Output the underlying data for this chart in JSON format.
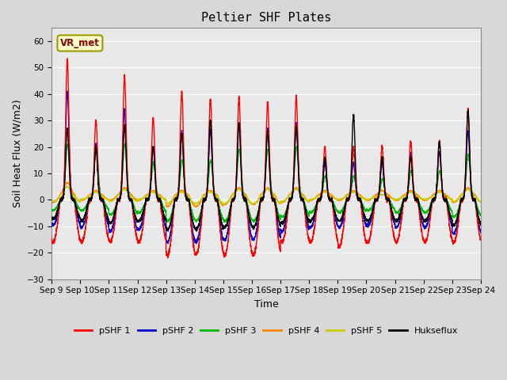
{
  "title": "Peltier SHF Plates",
  "xlabel": "Time",
  "ylabel": "Soil Heat Flux (W/m2)",
  "ylim": [
    -30,
    65
  ],
  "yticks": [
    -30,
    -20,
    -10,
    0,
    10,
    20,
    30,
    40,
    50,
    60
  ],
  "annotation_text": "VR_met",
  "background_color": "#d8d8d8",
  "plot_bg_color": "#e8e8e8",
  "legend_entries": [
    "pSHF 1",
    "pSHF 2",
    "pSHF 3",
    "pSHF 4",
    "pSHF 5",
    "Hukseflux"
  ],
  "line_colors": [
    "#ff0000",
    "#0000cc",
    "#00bb00",
    "#ff8800",
    "#cccc00",
    "#000000"
  ],
  "xtick_labels": [
    "Sep 9",
    "Sep 10",
    "Sep 11",
    "Sep 12",
    "Sep 13",
    "Sep 14",
    "Sep 15",
    "Sep 16",
    "Sep 17",
    "Sep 18",
    "Sep 19",
    "Sep 20",
    "Sep 21",
    "Sep 22",
    "Sep 23",
    "Sep 24"
  ],
  "num_days": 15,
  "pts_per_day": 288,
  "day_peaks_shf1": [
    53,
    30,
    47,
    31,
    41,
    38,
    39,
    37,
    39,
    20,
    20,
    20,
    22,
    22,
    34
  ],
  "day_peaks_shf2": [
    41,
    21,
    34,
    20,
    26,
    26,
    29,
    27,
    29,
    14,
    14,
    14,
    18,
    18,
    26
  ],
  "day_peaks_shf3": [
    21,
    19,
    21,
    14,
    15,
    15,
    19,
    19,
    20,
    9,
    9,
    8,
    11,
    11,
    17
  ],
  "day_peaks_shf4": [
    5,
    2,
    3,
    2,
    2,
    2,
    3,
    3,
    3,
    2,
    2,
    2,
    2,
    2,
    3
  ],
  "day_peaks_shf5": [
    4,
    2,
    3,
    2,
    2,
    2,
    3,
    3,
    3,
    2,
    2,
    1,
    2,
    2,
    3
  ],
  "day_peaks_huk": [
    27,
    20,
    28,
    20,
    25,
    30,
    29,
    26,
    28,
    16,
    32,
    16,
    16,
    22,
    34
  ],
  "day_troughs_shf1": [
    -20,
    -20,
    -20,
    -20,
    -26,
    -26,
    -26,
    -26,
    -20,
    -20,
    -22,
    -20,
    -20,
    -20,
    -20
  ],
  "day_troughs_shf2": [
    -12,
    -13,
    -15,
    -14,
    -20,
    -20,
    -19,
    -19,
    -15,
    -13,
    -13,
    -12,
    -13,
    -13,
    -16
  ],
  "day_troughs_shf3": [
    -5,
    -5,
    -7,
    -6,
    -10,
    -10,
    -10,
    -10,
    -8,
    -6,
    -6,
    -5,
    -6,
    -6,
    -8
  ],
  "day_troughs_shf4": [
    -3,
    -2,
    -2,
    -2,
    -5,
    -5,
    -4,
    -4,
    -3,
    -2,
    -2,
    -2,
    -2,
    -2,
    -3
  ],
  "day_troughs_shf5": [
    -2,
    -1,
    -2,
    -1,
    -3,
    -3,
    -3,
    -3,
    -2,
    -1,
    -1,
    -1,
    -1,
    -1,
    -2
  ],
  "day_troughs_huk": [
    -9,
    -10,
    -11,
    -10,
    -14,
    -14,
    -13,
    -13,
    -11,
    -10,
    -10,
    -10,
    -10,
    -10,
    -12
  ]
}
